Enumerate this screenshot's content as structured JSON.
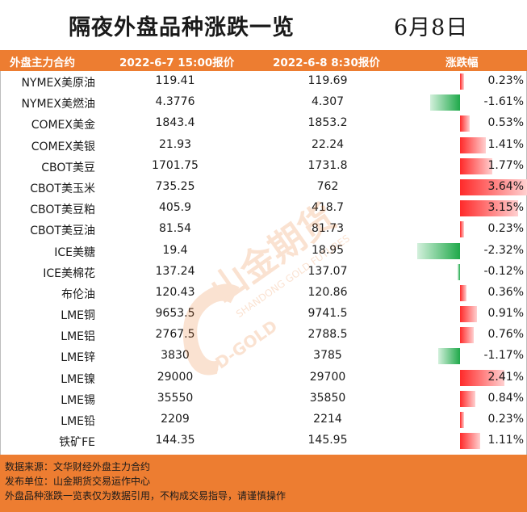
{
  "title": "隔夜外盘品种涨跌一览",
  "date": "6月8日",
  "columns": {
    "name": "外盘主力合约",
    "prev": "2022-6-7 15:00报价",
    "curr": "2022-6-8 8:30报价",
    "change": "涨跌幅"
  },
  "rows": [
    {
      "name": "NYMEX美原油",
      "prev": "119.41",
      "curr": "119.69",
      "change": "0.23%",
      "value": 0.23
    },
    {
      "name": "NYMEX美燃油",
      "prev": "4.3776",
      "curr": "4.307",
      "change": "-1.61%",
      "value": -1.61
    },
    {
      "name": "COMEX美金",
      "prev": "1843.4",
      "curr": "1853.2",
      "change": "0.53%",
      "value": 0.53
    },
    {
      "name": "COMEX美银",
      "prev": "21.93",
      "curr": "22.24",
      "change": "1.41%",
      "value": 1.41
    },
    {
      "name": "CBOT美豆",
      "prev": "1701.75",
      "curr": "1731.8",
      "change": "1.77%",
      "value": 1.77
    },
    {
      "name": "CBOT美玉米",
      "prev": "735.25",
      "curr": "762",
      "change": "3.64%",
      "value": 3.64
    },
    {
      "name": "CBOT美豆粕",
      "prev": "405.9",
      "curr": "418.7",
      "change": "3.15%",
      "value": 3.15
    },
    {
      "name": "CBOT美豆油",
      "prev": "81.54",
      "curr": "81.73",
      "change": "0.23%",
      "value": 0.23
    },
    {
      "name": "ICE美糖",
      "prev": "19.4",
      "curr": "18.95",
      "change": "-2.32%",
      "value": -2.32
    },
    {
      "name": "ICE美棉花",
      "prev": "137.24",
      "curr": "137.07",
      "change": "-0.12%",
      "value": -0.12
    },
    {
      "name": "布伦油",
      "prev": "120.43",
      "curr": "120.86",
      "change": "0.36%",
      "value": 0.36
    },
    {
      "name": "LME铜",
      "prev": "9653.5",
      "curr": "9741.5",
      "change": "0.91%",
      "value": 0.91
    },
    {
      "name": "LME铝",
      "prev": "2767.5",
      "curr": "2788.5",
      "change": "0.76%",
      "value": 0.76
    },
    {
      "name": "LME锌",
      "prev": "3830",
      "curr": "3785",
      "change": "-1.17%",
      "value": -1.17
    },
    {
      "name": "LME镍",
      "prev": "29000",
      "curr": "29700",
      "change": "2.41%",
      "value": 2.41
    },
    {
      "name": "LME锡",
      "prev": "35550",
      "curr": "35850",
      "change": "0.84%",
      "value": 0.84
    },
    {
      "name": "LME铅",
      "prev": "2209",
      "curr": "2214",
      "change": "0.23%",
      "value": 0.23
    },
    {
      "name": "铁矿FE",
      "prev": "144.35",
      "curr": "145.95",
      "change": "1.11%",
      "value": 1.11
    }
  ],
  "colors": {
    "header": "#ed7d31",
    "positive": "#ff2a2a",
    "negative": "#1fa94a"
  },
  "watermark": {
    "brand": "山金期货",
    "en": "SHANDONG GOLD FUTURES",
    "logo_text": "SD-GOLD"
  },
  "footer": {
    "source": "数据来源：文华财经外盘主力合约",
    "publisher": "发布单位：山金期货交易运作中心",
    "disclaimer": "外盘品种涨跌一览表仅为数据引用，不构成交易指导，请谨慎操作"
  }
}
